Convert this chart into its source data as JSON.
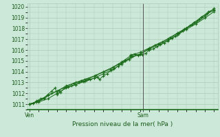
{
  "title": "",
  "xlabel": "Pression niveau de la mer( hPa )",
  "bg_color": "#cce8d8",
  "grid_color": "#aaccb8",
  "line_color": "#1a6b1a",
  "marker_color": "#1a6b1a",
  "axis_label_color": "#1a5a1a",
  "tick_label_color": "#1a5a1a",
  "ylim": [
    1010.5,
    1020.3
  ],
  "yticks": [
    1011,
    1012,
    1013,
    1014,
    1015,
    1016,
    1017,
    1018,
    1019,
    1020
  ],
  "vline_color": "#555555",
  "vline_x": 0.615,
  "series": [
    [
      0.0,
      1011.0
    ],
    [
      0.02,
      1011.1
    ],
    [
      0.04,
      1011.3
    ],
    [
      0.06,
      1011.5
    ],
    [
      0.08,
      1011.6
    ],
    [
      0.1,
      1011.9
    ],
    [
      0.12,
      1012.2
    ],
    [
      0.14,
      1012.5
    ],
    [
      0.15,
      1011.9
    ],
    [
      0.17,
      1012.1
    ],
    [
      0.19,
      1012.5
    ],
    [
      0.21,
      1012.6
    ],
    [
      0.23,
      1012.7
    ],
    [
      0.25,
      1012.8
    ],
    [
      0.27,
      1013.0
    ],
    [
      0.29,
      1013.1
    ],
    [
      0.31,
      1013.2
    ],
    [
      0.33,
      1013.3
    ],
    [
      0.35,
      1013.4
    ],
    [
      0.37,
      1013.5
    ],
    [
      0.38,
      1013.3
    ],
    [
      0.4,
      1013.6
    ],
    [
      0.42,
      1013.8
    ],
    [
      0.44,
      1014.1
    ],
    [
      0.46,
      1014.3
    ],
    [
      0.48,
      1014.5
    ],
    [
      0.5,
      1014.8
    ],
    [
      0.52,
      1015.0
    ],
    [
      0.54,
      1015.1
    ],
    [
      0.55,
      1015.55
    ],
    [
      0.57,
      1015.65
    ],
    [
      0.59,
      1015.5
    ],
    [
      0.61,
      1015.55
    ],
    [
      0.63,
      1015.7
    ],
    [
      0.65,
      1016.0
    ],
    [
      0.67,
      1016.1
    ],
    [
      0.69,
      1016.3
    ],
    [
      0.71,
      1016.5
    ],
    [
      0.73,
      1016.65
    ],
    [
      0.75,
      1016.85
    ],
    [
      0.77,
      1017.05
    ],
    [
      0.79,
      1017.25
    ],
    [
      0.81,
      1017.5
    ],
    [
      0.83,
      1017.8
    ],
    [
      0.85,
      1018.05
    ],
    [
      0.87,
      1018.25
    ],
    [
      0.89,
      1018.55
    ],
    [
      0.91,
      1018.75
    ],
    [
      0.93,
      1019.05
    ],
    [
      0.95,
      1019.25
    ],
    [
      0.97,
      1019.55
    ],
    [
      1.0,
      1019.75
    ]
  ],
  "series2": [
    [
      0.0,
      1011.0
    ],
    [
      0.04,
      1011.2
    ],
    [
      0.08,
      1011.5
    ],
    [
      0.12,
      1012.0
    ],
    [
      0.16,
      1012.3
    ],
    [
      0.2,
      1012.6
    ],
    [
      0.24,
      1012.9
    ],
    [
      0.28,
      1013.15
    ],
    [
      0.32,
      1013.35
    ],
    [
      0.36,
      1013.65
    ],
    [
      0.4,
      1013.95
    ],
    [
      0.44,
      1014.25
    ],
    [
      0.48,
      1014.65
    ],
    [
      0.52,
      1015.05
    ],
    [
      0.56,
      1015.45
    ],
    [
      0.6,
      1015.65
    ],
    [
      0.64,
      1016.05
    ],
    [
      0.68,
      1016.45
    ],
    [
      0.72,
      1016.75
    ],
    [
      0.76,
      1017.15
    ],
    [
      0.8,
      1017.55
    ],
    [
      0.84,
      1017.95
    ],
    [
      0.88,
      1018.35
    ],
    [
      0.92,
      1018.85
    ],
    [
      0.96,
      1019.35
    ],
    [
      1.0,
      1019.65
    ]
  ],
  "series3": [
    [
      0.0,
      1011.0
    ],
    [
      0.05,
      1011.3
    ],
    [
      0.1,
      1011.8
    ],
    [
      0.15,
      1012.2
    ],
    [
      0.2,
      1012.7
    ],
    [
      0.25,
      1013.0
    ],
    [
      0.3,
      1013.3
    ],
    [
      0.35,
      1013.6
    ],
    [
      0.4,
      1014.0
    ],
    [
      0.45,
      1014.4
    ],
    [
      0.5,
      1014.9
    ],
    [
      0.55,
      1015.5
    ],
    [
      0.6,
      1015.8
    ],
    [
      0.65,
      1016.2
    ],
    [
      0.7,
      1016.6
    ],
    [
      0.75,
      1017.0
    ],
    [
      0.8,
      1017.5
    ],
    [
      0.85,
      1018.0
    ],
    [
      0.9,
      1018.5
    ],
    [
      0.95,
      1019.1
    ],
    [
      1.0,
      1019.85
    ]
  ],
  "series4": [
    [
      0.0,
      1011.0
    ],
    [
      0.05,
      1011.2
    ],
    [
      0.1,
      1011.5
    ],
    [
      0.15,
      1012.0
    ],
    [
      0.2,
      1012.5
    ],
    [
      0.25,
      1012.8
    ],
    [
      0.3,
      1013.1
    ],
    [
      0.35,
      1013.4
    ],
    [
      0.4,
      1013.8
    ],
    [
      0.45,
      1014.2
    ],
    [
      0.5,
      1014.7
    ],
    [
      0.55,
      1015.3
    ],
    [
      0.6,
      1015.6
    ],
    [
      0.65,
      1016.1
    ],
    [
      0.7,
      1016.5
    ],
    [
      0.75,
      1016.9
    ],
    [
      0.8,
      1017.4
    ],
    [
      0.85,
      1017.9
    ],
    [
      0.9,
      1018.4
    ],
    [
      0.95,
      1018.95
    ],
    [
      1.0,
      1019.55
    ]
  ]
}
